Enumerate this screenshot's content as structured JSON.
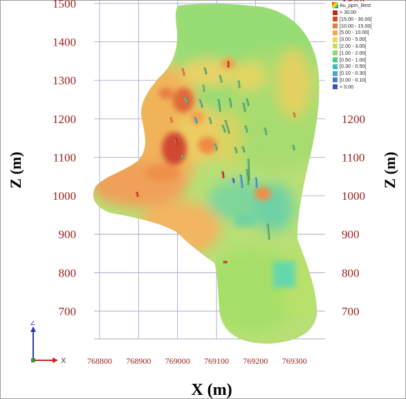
{
  "chart_data": {
    "type": "heatmap",
    "title": "",
    "xlabel": "X (m)",
    "ylabel": "Z (m)",
    "xlim": [
      768770,
      769380
    ],
    "ylim": [
      630,
      1500
    ],
    "x_ticks": [
      768800,
      768900,
      769000,
      769100,
      769200,
      769300
    ],
    "y_ticks": [
      700,
      800,
      900,
      1000,
      1100,
      1200,
      1300,
      1400,
      1500
    ],
    "grid": true,
    "legend_position": "top-right",
    "legend": {
      "title": "Au_ppm_Best",
      "entries": [
        {
          "label": "> 30.00",
          "color": "#c0281e"
        },
        {
          "label": "[15.00 - 30.00[",
          "color": "#d9462a"
        },
        {
          "label": "[10.00 - 15.00[",
          "color": "#ec7a38"
        },
        {
          "label": "[5.00 - 10.00[",
          "color": "#f3a94e"
        },
        {
          "label": "[3.00 - 5.00[",
          "color": "#f0d45c"
        },
        {
          "label": "[2.00 - 3.00[",
          "color": "#c6e05e"
        },
        {
          "label": "[1.00 - 2.00[",
          "color": "#8fdc6c"
        },
        {
          "label": "[0.50 - 1.00[",
          "color": "#42cf86"
        },
        {
          "label": "[0.30 - 0.50[",
          "color": "#38c0b8"
        },
        {
          "label": "[0.10 - 0.30[",
          "color": "#46a4d8"
        },
        {
          "label": "[0.00 - 0.10[",
          "color": "#4a78d4"
        },
        {
          "label": "< 0.00",
          "color": "#3a50c8"
        }
      ]
    }
  },
  "axis_triad": {
    "z_label": "Z",
    "x_label": "X"
  }
}
